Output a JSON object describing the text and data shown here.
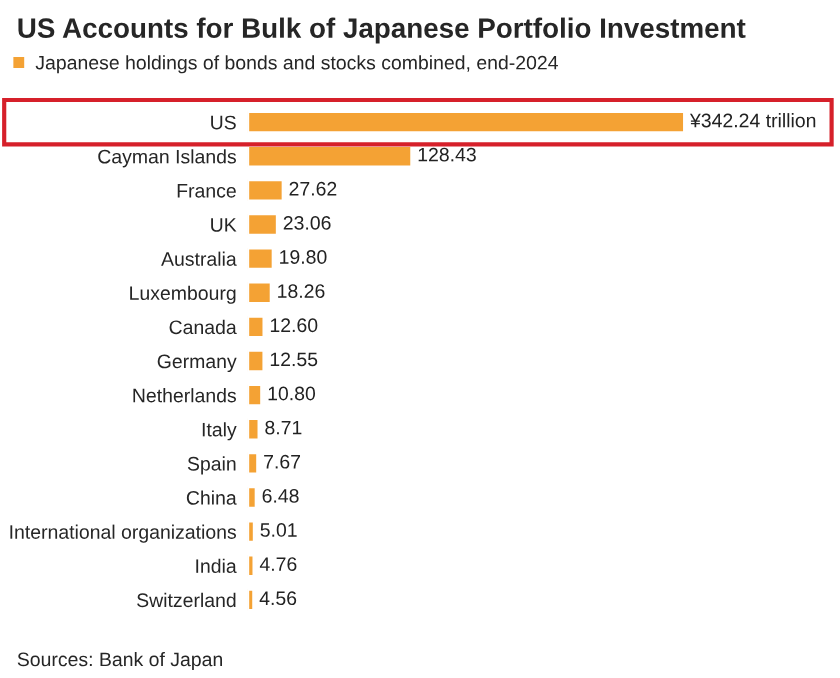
{
  "chart_data": {
    "type": "bar",
    "orientation": "horizontal",
    "title": "US Accounts for Bulk of Japanese Portfolio Investment",
    "categories": [
      "US",
      "Cayman Islands",
      "France",
      "UK",
      "Australia",
      "Luxembourg",
      "Canada",
      "Germany",
      "Netherlands",
      "Italy",
      "Spain",
      "China",
      "International organizations",
      "India",
      "Switzerland"
    ],
    "series": [
      {
        "name": "Japanese holdings of bonds and stocks combined, end-2024",
        "color": "#f4a234",
        "values": [
          342.24,
          128.43,
          27.62,
          23.06,
          19.8,
          18.26,
          12.6,
          12.55,
          10.8,
          8.71,
          7.67,
          6.48,
          5.01,
          4.76,
          4.56
        ],
        "value_labels": [
          "¥342.24 trillion",
          "128.43",
          "27.62",
          "23.06",
          "19.80",
          "18.26",
          "12.60",
          "12.55",
          "10.80",
          "8.71",
          "7.67",
          "6.48",
          "5.01",
          "4.76",
          "4.56"
        ]
      }
    ],
    "legend": "top left",
    "grid": false,
    "annotations": [
      "Sources: Bank of Japan"
    ]
  }
}
